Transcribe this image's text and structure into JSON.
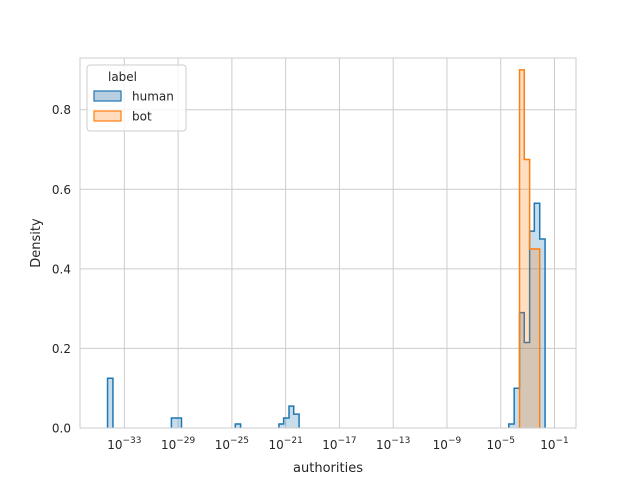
{
  "chart_data": {
    "type": "histogram",
    "title": "",
    "xlabel": "authorities",
    "ylabel": "Density",
    "x_scale": "log10",
    "x_range_exp": [
      -36.3,
      0.6
    ],
    "ylim": [
      0,
      0.93
    ],
    "x_ticks": [
      {
        "exp": -33,
        "label": "10",
        "sup": "−33"
      },
      {
        "exp": -29,
        "label": "10",
        "sup": "−29"
      },
      {
        "exp": -25,
        "label": "10",
        "sup": "−25"
      },
      {
        "exp": -21,
        "label": "10",
        "sup": "−21"
      },
      {
        "exp": -17,
        "label": "10",
        "sup": "−17"
      },
      {
        "exp": -13,
        "label": "10",
        "sup": "−13"
      },
      {
        "exp": -9,
        "label": "10",
        "sup": "−9"
      },
      {
        "exp": -5,
        "label": "10",
        "sup": "−5"
      },
      {
        "exp": -1,
        "label": "10",
        "sup": "−1"
      }
    ],
    "y_ticks": [
      {
        "value": 0.0,
        "label": "0.0"
      },
      {
        "value": 0.2,
        "label": "0.2"
      },
      {
        "value": 0.4,
        "label": "0.4"
      },
      {
        "value": 0.6,
        "label": "0.6"
      },
      {
        "value": 0.8,
        "label": "0.8"
      }
    ],
    "grid": true,
    "legend": {
      "title": "label",
      "placement": "top-left",
      "entries": [
        {
          "name": "human",
          "edge": "#1f77b4",
          "fill": "#b9cfe1"
        },
        {
          "name": "bot",
          "edge": "#ff7f0e",
          "fill": "#ffdcbd"
        }
      ]
    },
    "series": [
      {
        "name": "human",
        "edge_color": "#1f77b4",
        "fill_color": "#1f77b4",
        "fill_opacity": 0.25,
        "bins": [
          {
            "x0": -34.25,
            "x1": -33.85,
            "density": 0.125
          },
          {
            "x0": -29.5,
            "x1": -28.75,
            "density": 0.025
          },
          {
            "x0": -24.75,
            "x1": -24.35,
            "density": 0.01
          },
          {
            "x0": -21.5,
            "x1": -21.15,
            "density": 0.01
          },
          {
            "x0": -21.15,
            "x1": -20.75,
            "density": 0.025
          },
          {
            "x0": -20.75,
            "x1": -20.4,
            "density": 0.055
          },
          {
            "x0": -20.4,
            "x1": -20.0,
            "density": 0.035
          },
          {
            "x0": -4.4,
            "x1": -4.0,
            "density": 0.01
          },
          {
            "x0": -4.0,
            "x1": -3.6,
            "density": 0.1
          },
          {
            "x0": -3.6,
            "x1": -3.25,
            "density": 0.29
          },
          {
            "x0": -3.25,
            "x1": -2.85,
            "density": 0.215
          },
          {
            "x0": -2.85,
            "x1": -2.5,
            "density": 0.495
          },
          {
            "x0": -2.5,
            "x1": -2.1,
            "density": 0.565
          },
          {
            "x0": -2.1,
            "x1": -1.7,
            "density": 0.475
          }
        ]
      },
      {
        "name": "bot",
        "edge_color": "#ff7f0e",
        "fill_color": "#ff7f0e",
        "fill_opacity": 0.25,
        "bins": [
          {
            "x0": -3.6,
            "x1": -3.25,
            "density": 0.9
          },
          {
            "x0": -3.25,
            "x1": -2.85,
            "density": 0.675
          },
          {
            "x0": -2.85,
            "x1": -2.1,
            "density": 0.45
          }
        ]
      }
    ]
  }
}
